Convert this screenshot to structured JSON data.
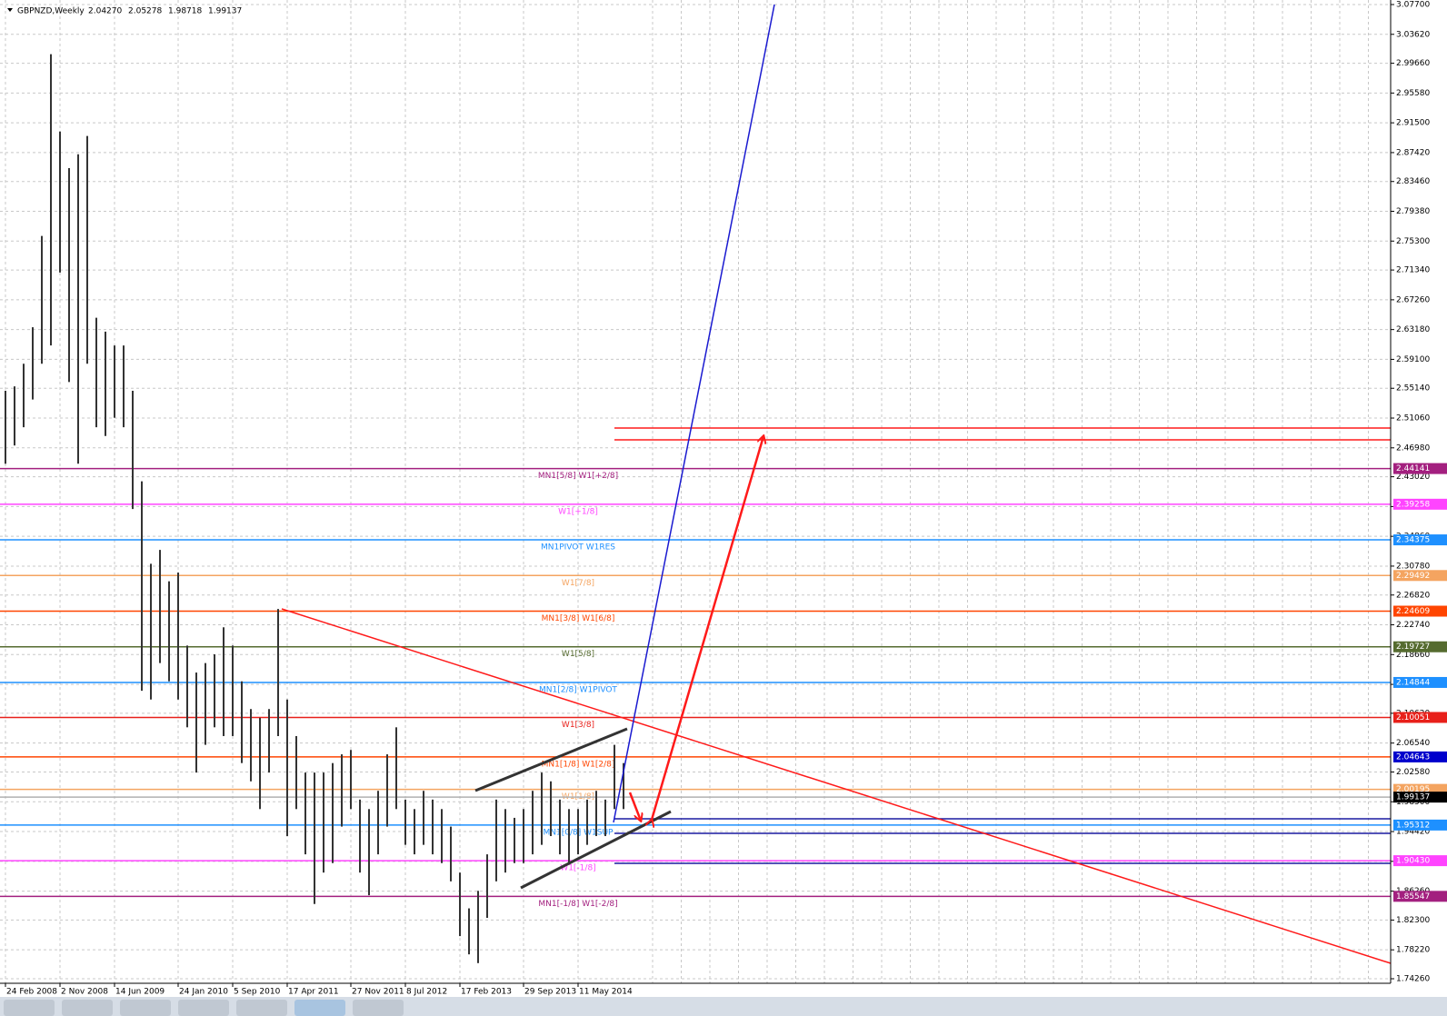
{
  "chart_data": {
    "type": "ohlc",
    "title": "GBPNZD,Weekly",
    "header_prices": [
      {
        "value": 2.0427,
        "label": "2.04270"
      },
      {
        "value": 2.05278,
        "label": "2.05278"
      },
      {
        "value": 1.98718,
        "label": "1.98718"
      },
      {
        "value": 1.99137,
        "label": "1.99137"
      }
    ],
    "categories": [
      "24 Feb 2008",
      null,
      null,
      null,
      null,
      null,
      "2 Nov 2008",
      null,
      null,
      null,
      null,
      null,
      "14 Jun 2009",
      null,
      null,
      null,
      null,
      null,
      null,
      "24 Jan 2010",
      null,
      null,
      null,
      null,
      null,
      "5 Sep 2010",
      null,
      null,
      null,
      null,
      null,
      "17 Apr 2011",
      null,
      null,
      null,
      null,
      null,
      null,
      "27 Nov 2011",
      null,
      null,
      null,
      null,
      null,
      "8 Jul 2012",
      null,
      null,
      null,
      null,
      null,
      "17 Feb 2013",
      null,
      null,
      null,
      null,
      null,
      null,
      "29 Sep 2013",
      null,
      null,
      null,
      null,
      null,
      "11 May 2014",
      null,
      null,
      null,
      null,
      null
    ],
    "high": [
      2.548,
      2.554,
      2.585,
      2.635,
      2.76,
      3.009,
      2.903,
      2.853,
      2.872,
      2.897,
      2.648,
      2.629,
      2.61,
      2.61,
      2.548,
      2.424,
      2.311,
      2.33,
      2.287,
      2.299,
      2.199,
      2.162,
      2.175,
      2.187,
      2.224,
      2.199,
      2.15,
      2.112,
      2.1,
      2.112,
      2.249,
      2.125,
      2.075,
      2.025,
      2.025,
      2.025,
      2.038,
      2.05,
      2.056,
      1.988,
      1.975,
      2.0,
      2.05,
      2.087,
      1.988,
      1.975,
      2.0,
      1.988,
      1.975,
      1.951,
      1.888,
      1.839,
      1.863,
      1.913,
      1.988,
      1.975,
      1.963,
      1.975,
      2.0,
      2.025,
      2.013,
      1.988,
      1.975,
      1.975,
      1.988,
      2.0,
      1.988,
      2.063,
      2.038
    ],
    "low": [
      2.448,
      2.473,
      2.498,
      2.536,
      2.585,
      2.61,
      2.71,
      2.56,
      2.448,
      2.585,
      2.498,
      2.486,
      2.511,
      2.498,
      2.386,
      2.137,
      2.125,
      2.175,
      2.15,
      2.125,
      2.087,
      2.025,
      2.063,
      2.087,
      2.075,
      2.075,
      2.038,
      2.013,
      1.975,
      2.025,
      2.075,
      1.938,
      1.975,
      1.913,
      1.845,
      1.888,
      1.901,
      1.951,
      1.975,
      1.888,
      1.857,
      1.913,
      1.951,
      1.975,
      1.926,
      1.913,
      1.926,
      1.913,
      1.901,
      1.876,
      1.801,
      1.776,
      1.764,
      1.826,
      1.876,
      1.888,
      1.901,
      1.901,
      1.913,
      1.926,
      1.938,
      1.913,
      1.901,
      1.913,
      1.926,
      1.938,
      1.938,
      1.975,
      1.975
    ],
    "bar_color": "#333333",
    "ylim": [
      1.7426,
      3.077
    ],
    "yticks": [
      {
        "value": 3.077,
        "label": "3.07700"
      },
      {
        "value": 3.0362,
        "label": "3.03620"
      },
      {
        "value": 2.9966,
        "label": "2.99660"
      },
      {
        "value": 2.9558,
        "label": "2.95580"
      },
      {
        "value": 2.915,
        "label": "2.91500"
      },
      {
        "value": 2.8742,
        "label": "2.87420"
      },
      {
        "value": 2.8346,
        "label": "2.83460"
      },
      {
        "value": 2.7938,
        "label": "2.79380"
      },
      {
        "value": 2.753,
        "label": "2.75300"
      },
      {
        "value": 2.7134,
        "label": "2.71340"
      },
      {
        "value": 2.6726,
        "label": "2.67260"
      },
      {
        "value": 2.6318,
        "label": "2.63180"
      },
      {
        "value": 2.591,
        "label": "2.59100"
      },
      {
        "value": 2.5514,
        "label": "2.55140"
      },
      {
        "value": 2.5106,
        "label": "2.51060"
      },
      {
        "value": 2.4698,
        "label": "2.46980"
      },
      {
        "value": 2.4302,
        "label": "2.43020"
      },
      {
        "value": 2.3894,
        "label": "2.38940"
      },
      {
        "value": 2.3486,
        "label": "2.34860"
      },
      {
        "value": 2.3078,
        "label": "2.30780"
      },
      {
        "value": 2.2682,
        "label": "2.26820"
      },
      {
        "value": 2.2274,
        "label": "2.22740"
      },
      {
        "value": 2.1866,
        "label": "2.18660"
      },
      {
        "value": 2.1458,
        "label": "2.14580"
      },
      {
        "value": 2.1062,
        "label": "2.10620"
      },
      {
        "value": 2.0654,
        "label": "2.06540"
      },
      {
        "value": 2.0258,
        "label": "2.02580"
      },
      {
        "value": 1.985,
        "label": "1.98500"
      },
      {
        "value": 1.9442,
        "label": "1.94420"
      },
      {
        "value": 1.9034,
        "label": "1.90340"
      },
      {
        "value": 1.8626,
        "label": "1.86260"
      },
      {
        "value": 1.823,
        "label": "1.82300"
      },
      {
        "value": 1.7822,
        "label": "1.78220"
      },
      {
        "value": 1.7426,
        "label": "1.74260"
      }
    ],
    "grid": true,
    "levels": [
      {
        "name": "MN1[5/8] W1[+2/8]",
        "value": 2.44141,
        "label": "2.44141",
        "color": "#a3207f",
        "tag_color": "#a3207f"
      },
      {
        "name": "W1[+1/8]",
        "value": 2.39258,
        "label": "2.39258",
        "color": "#ff44ff",
        "tag_color": "#ff44ff"
      },
      {
        "name": "MN1PIVOT W1RES",
        "value": 2.34375,
        "label": "2.34375",
        "color": "#1e90ff",
        "tag_color": "#1e90ff"
      },
      {
        "name": "W1[7/8]",
        "value": 2.29492,
        "label": "2.29492",
        "color": "#f4a460",
        "tag_color": "#f4a460"
      },
      {
        "name": "MN1[3/8] W1[6/8]",
        "value": 2.24609,
        "label": "2.24609",
        "color": "#ff4500",
        "tag_color": "#ff4500"
      },
      {
        "name": "W1[5/8]",
        "value": 2.19727,
        "label": "2.19727",
        "color": "#556b2f",
        "tag_color": "#556b2f"
      },
      {
        "name": "MN1[2/8] W1PIVOT",
        "value": 2.14844,
        "label": "2.14844",
        "color": "#1e90ff",
        "tag_color": "#1e90ff"
      },
      {
        "name": "W1[3/8]",
        "value": 2.10051,
        "label": "2.10051",
        "color": "#e8201a",
        "tag_color": "#e8201a"
      },
      {
        "name": "MN1[1/8] W1[2/8]",
        "value": 2.04643,
        "label": "2.04643",
        "color": "#ff4500",
        "tag_color": "#0000cc"
      },
      {
        "name": "W1[1/8]",
        "value": 2.00195,
        "label": "2.00195",
        "color": "#f4a460",
        "tag_color": "#f4a460"
      },
      {
        "value": 1.99137,
        "label": "1.99137",
        "color": "#b0b0b0",
        "tag_color": "#000000"
      },
      {
        "name": "MN1[0/8] W1SUP",
        "value": 1.95312,
        "label": "1.95312",
        "color": "#1e90ff",
        "tag_color": "#1e90ff"
      },
      {
        "name": "W1[-1/8]",
        "value": 1.9043,
        "label": "1.90430",
        "color": "#ff44ff",
        "tag_color": "#ff44ff"
      },
      {
        "name": "MN1[-1/8] W1[-2/8]",
        "value": 1.85547,
        "label": "1.85547",
        "color": "#a3207f",
        "tag_color": "#a3207f"
      }
    ],
    "target_lines": [
      {
        "value": 2.4969,
        "color": "#ff1a1a"
      },
      {
        "value": 2.4808,
        "color": "#ff1a1a"
      },
      {
        "value": 1.9617,
        "color": "#1a1aa0"
      },
      {
        "value": 1.9418,
        "color": "#1a1aa0"
      },
      {
        "value": 1.9007,
        "color": "#1a1aa0"
      }
    ]
  }
}
